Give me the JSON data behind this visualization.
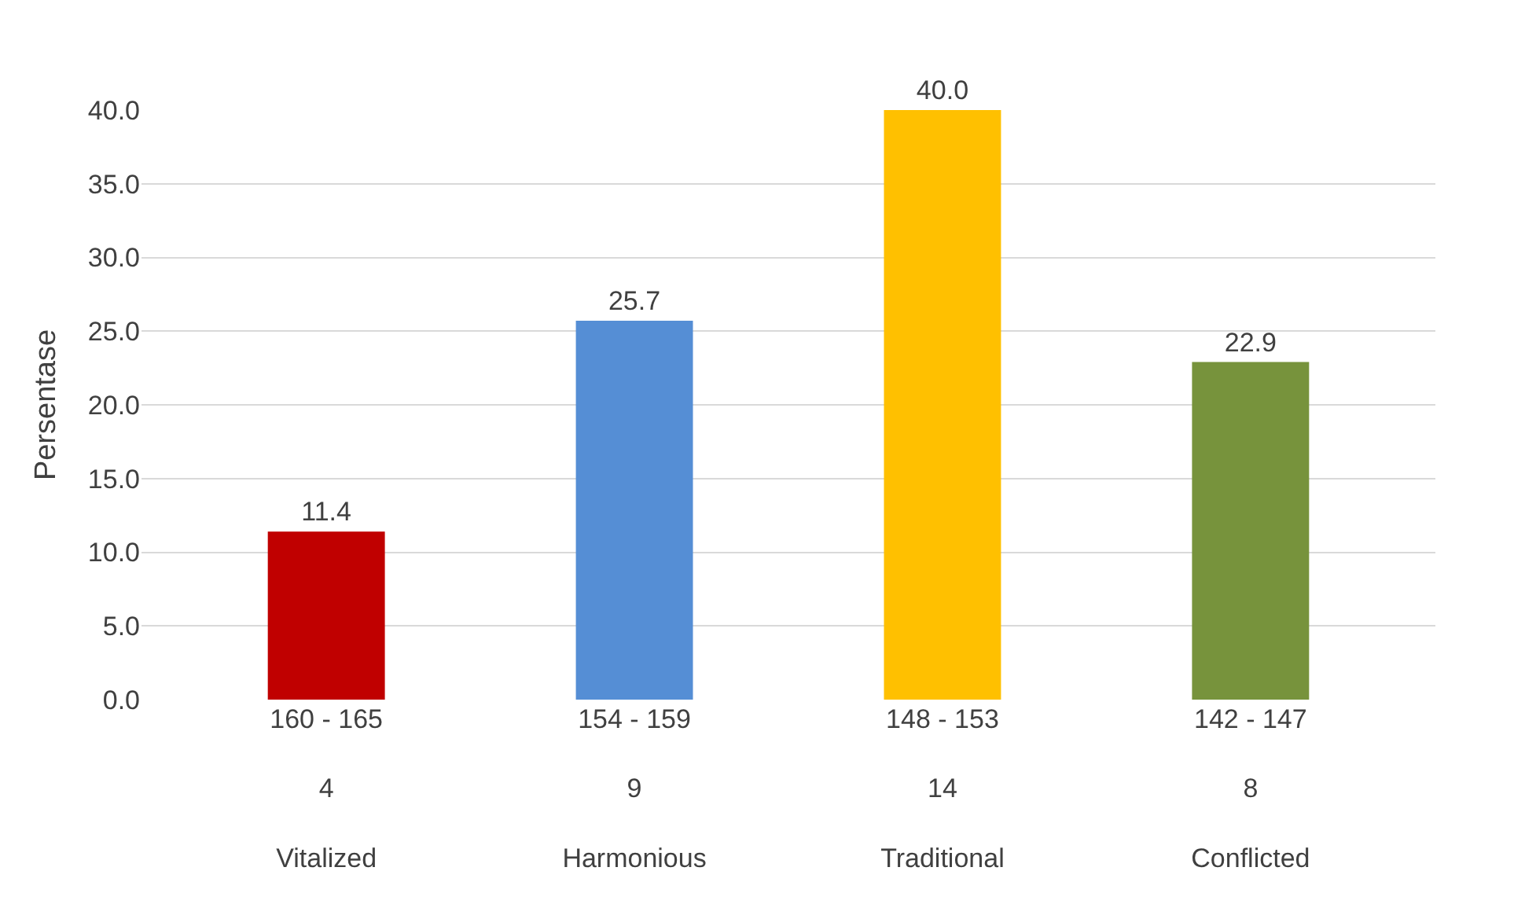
{
  "chart_data": {
    "type": "bar",
    "ylabel": "Persentase",
    "categories": [
      "160 - 165\n4\nVitalized",
      "154 - 159\n9\nHarmonious",
      "148 - 153\n14\nTraditional",
      "142 - 147\n8\nConflicted"
    ],
    "values": [
      11.4,
      25.7,
      40.0,
      22.9
    ],
    "colors": [
      "#c00000",
      "#558ed5",
      "#ffc000",
      "#77933c"
    ],
    "ylim": [
      0,
      40
    ],
    "value_labels": [
      "11.4",
      "25.7",
      "40.0",
      "22.9"
    ],
    "yticks": [
      {
        "value": 0,
        "label": "0.0"
      },
      {
        "value": 5,
        "label": "5.0"
      },
      {
        "value": 10,
        "label": "10.0"
      },
      {
        "value": 15,
        "label": "15.0"
      },
      {
        "value": 20,
        "label": "20.0"
      },
      {
        "value": 25,
        "label": "25.0"
      },
      {
        "value": 30,
        "label": "30.0"
      },
      {
        "value": 35,
        "label": "35.0"
      },
      {
        "value": 40,
        "label": "40.0"
      }
    ],
    "grid": "y"
  }
}
